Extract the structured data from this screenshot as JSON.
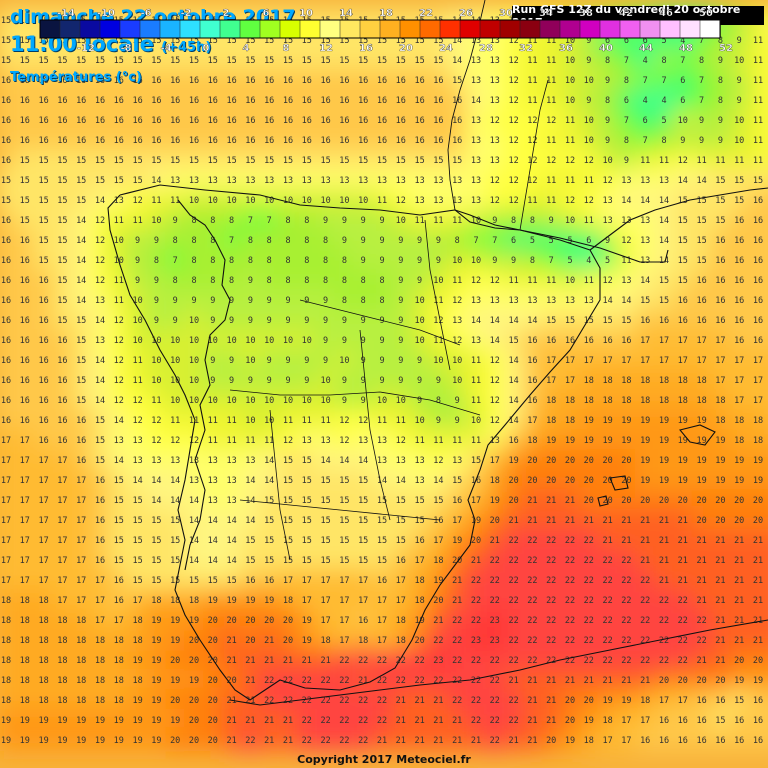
{
  "header": {
    "date_line": "dimanche 22 octobre 2017",
    "time_line": "11:00 locale",
    "offset": "(+45h)",
    "variable": "Températures (°c)"
  },
  "run_label": "Run GFS 12Z du vendredi 20 octobre 2017",
  "copyright": "Copyright 2017 Meteociel.fr",
  "legend": {
    "top_labels": [
      "-14",
      "-10",
      "-6",
      "-2",
      "2",
      "6",
      "10",
      "14",
      "18",
      "22",
      "26",
      "30",
      "34",
      "38",
      "42",
      "46",
      "50"
    ],
    "bottom_labels": [
      "-12",
      "-8",
      "-4",
      "0",
      "4",
      "8",
      "12",
      "16",
      "20",
      "24",
      "28",
      "32",
      "36",
      "40",
      "44",
      "48",
      "52"
    ],
    "colors": [
      "#0a1440",
      "#12266e",
      "#0a0aa0",
      "#0000e0",
      "#1a3cff",
      "#1a7cff",
      "#1ab4ff",
      "#2ee0ff",
      "#40ffd0",
      "#40ff90",
      "#60ff40",
      "#a0ff20",
      "#d8ff00",
      "#ffff30",
      "#ffff80",
      "#ffe860",
      "#ffd040",
      "#ffb020",
      "#ff9000",
      "#ff6a00",
      "#ff3000",
      "#e00000",
      "#c00000",
      "#a00000",
      "#8a0010",
      "#90005a",
      "#b00090",
      "#d000c0",
      "#e030e0",
      "#f060f0",
      "#f090f0",
      "#ffc0ff",
      "#ffe0ff",
      "#ffffff"
    ]
  },
  "temperature_grid": {
    "note_units": "°c",
    "rows": [
      "15 15 15 15 15 15 15 15 15 15 15 15 15 15 15 15 15 15 15 15 15 15 15 15 14 14 13 13 12 11 10 9 8 7 7 6 5 6 7 9 11 13",
      "15 15 15 15 15 15 15 15 15 15 15 15 15 15 15 15 15 15 15 15 15 15 15 15 14 13 13 12 11 11 10 9 6 6 6 5 4 7 8 9 11 12",
      "15 15 15 15 15 15 15 15 15 15 15 15 15 15 15 15 15 15 15 15 15 15 15 15 14 13 13 12 11 11 10 9 8 7 4 8 7 8 9 10 11 12",
      "16 16 16 16 16 16 16 16 16 16 16 16 16 16 16 16 16 16 16 16 16 16 16 16 15 13 13 12 11 11 10 10 9 8 7 7 6 7 8 9 11 12",
      "16 16 16 16 16 16 16 16 16 16 16 16 16 16 16 16 16 16 16 16 16 16 16 16 16 14 13 12 11 11 10 9 8 6 4 4 6 7 8 9 11 12",
      "16 16 16 16 16 16 16 16 16 16 16 16 16 16 16 16 16 16 16 16 16 16 16 16 16 13 12 12 12 12 11 10 9 7 6 5 10 9 9 10 11 12",
      "16 16 16 16 16 16 16 16 16 16 16 16 16 16 16 16 16 16 16 16 16 16 16 16 16 13 13 12 12 11 11 10 9 8 7 8 9 9 9 10 11 12",
      "16 15 15 15 15 15 15 15 15 15 15 15 15 15 15 15 15 15 15 15 15 15 15 15 15 13 13 12 12 12 12 12 10 9 11 11 12 11 11 11 11 12",
      "15 15 15 15 15 15 15 15 14 13 13 13 13 13 13 13 13 13 13 13 13 13 13 13 13 13 12 12 12 11 11 11 12 13 13 13 14 14 15 15 15 15",
      "15 15 15 15 15 14 13 12 11 11 10 10 10 10 10 10 10 10 10 10 11 12 13 13 13 13 12 12 11 11 12 12 13 14 14 14 15 15 15 15 16 16",
      "16 15 15 15 14 12 11 11 10 9 8 8 8 7 7 8 8 9 9 9 9 10 11 11 11 10 9 8 8 9 10 11 13 13 13 14 15 15 15 16 16 16",
      "16 16 15 15 14 12 10 9 9 8 8 8 7 8 8 8 8 8 9 9 9 9 9 9 8 7 7 6 5 5 5 6 9 12 13 14 15 15 16 16 16 16",
      "16 16 15 15 14 12 10 9 8 7 8 8 8 8 8 8 8 8 8 9 9 9 9 9 10 10 9 9 8 7 5 4 5 11 13 14 15 15 16 16 16 16",
      "16 16 16 15 14 12 11 9 9 8 8 8 8 9 8 8 8 8 8 8 8 9 9 10 11 12 12 11 11 11 10 11 12 13 14 15 15 16 16 16 16 16",
      "16 16 16 15 14 13 11 10 9 9 9 9 9 9 9 9 9 9 8 8 8 9 10 11 12 13 13 13 13 13 13 13 14 14 15 15 16 16 16 16 16 16",
      "16 16 16 15 15 14 12 10 9 9 10 9 9 9 9 9 9 9 9 9 9 9 10 12 13 14 14 14 14 15 15 15 15 15 16 16 16 16 16 16 16 16",
      "16 16 16 16 15 13 12 10 10 10 10 10 10 10 10 10 10 9 9 9 9 9 10 11 12 13 14 15 16 16 16 16 16 16 17 17 17 17 17 16 16 16",
      "16 16 16 16 15 14 12 11 10 10 10 9 9 10 9 9 9 9 10 9 9 9 9 10 10 11 12 14 16 17 17 17 17 17 17 17 17 17 17 17 17 17",
      "16 16 16 16 15 14 12 11 10 10 10 9 9 9 9 9 9 10 9 9 9 9 9 9 10 11 12 14 16 17 17 18 18 18 18 18 18 18 17 17 17 17",
      "16 16 16 16 15 14 12 12 11 10 10 10 10 10 10 10 10 10 9 9 10 10 9 8 9 11 12 14 16 18 18 18 18 18 18 18 18 18 18 17 17 17",
      "16 16 16 16 16 15 14 12 12 11 11 11 11 10 10 11 11 11 12 12 11 11 10 9 9 10 12 14 17 18 18 19 19 19 19 19 19 19 18 18 18 17",
      "17 17 16 16 16 15 13 13 12 12 12 11 11 11 11 12 13 13 12 13 13 12 11 11 11 11 13 16 18 19 19 19 19 19 19 19 19 19 19 18 18 18",
      "17 17 17 17 16 15 14 13 13 13 13 13 13 13 14 15 15 14 14 14 13 13 13 12 13 15 17 19 20 20 20 20 20 20 19 19 19 19 19 19 19 19",
      "17 17 17 17 17 16 15 14 14 14 13 13 13 14 14 15 15 15 15 15 14 14 13 14 15 16 18 20 20 20 20 20 20 20 19 19 19 19 19 19 19 19",
      "17 17 17 17 17 16 15 15 14 14 14 13 13 14 15 15 15 15 15 15 15 15 15 15 16 17 19 20 21 21 21 20 20 20 20 20 20 20 20 20 20 20",
      "17 17 17 17 17 16 15 15 15 15 14 14 14 14 15 15 15 15 15 15 15 15 15 16 17 19 20 21 21 21 21 21 21 21 21 21 21 20 20 20 20 20",
      "17 17 17 17 17 16 15 15 15 15 14 14 14 15 15 15 15 15 15 15 15 15 16 17 19 20 21 22 22 22 22 22 21 21 21 21 21 21 21 21 21 21",
      "17 17 17 17 17 16 15 15 15 15 14 14 14 15 15 15 15 15 15 15 15 16 17 18 20 21 22 22 22 22 22 22 22 22 21 21 21 21 21 21 21 21",
      "17 17 17 17 17 17 16 15 15 15 15 15 15 16 16 17 17 17 17 17 16 17 18 19 21 22 22 22 22 22 22 22 22 22 22 21 21 21 21 21 21 21",
      "18 18 18 17 17 17 16 17 18 18 18 19 19 19 19 18 17 17 17 17 17 17 18 20 21 22 22 22 22 22 22 22 22 22 22 22 22 21 21 21 21 21",
      "18 18 18 18 18 17 17 18 19 19 19 20 20 20 20 20 19 17 17 16 17 18 19 21 22 22 23 22 22 22 22 22 22 22 22 22 22 22 21 21 21 21",
      "18 18 18 18 18 18 18 18 19 19 20 20 21 20 21 20 19 18 17 18 17 18 20 22 22 23 23 22 22 22 22 22 22 22 22 22 22 22 21 21 21 21",
      "18 18 18 18 18 18 18 19 19 20 20 20 21 21 21 21 21 21 22 22 22 22 22 23 22 22 22 22 22 22 22 22 22 22 22 22 22 21 21 20 20 20",
      "18 18 18 18 18 18 18 18 19 19 19 20 20 21 22 22 22 22 22 21 22 22 22 22 22 22 22 21 21 21 21 21 21 21 21 20 20 20 20 19 19 19",
      "18 18 18 18 18 18 18 19 19 20 20 20 21 21 22 22 22 22 22 22 22 21 21 21 22 22 22 22 21 21 20 20 19 19 18 17 17 16 16 15 16 16",
      "19 19 19 19 19 19 19 19 19 19 20 20 21 21 21 21 22 22 22 22 22 21 21 21 21 22 22 22 21 21 20 19 18 17 17 16 16 16 15 16 16 16",
      "19 19 19 19 19 19 19 19 19 20 20 20 21 22 21 21 22 22 22 22 21 21 21 21 21 21 22 21 21 20 19 18 17 17 16 16 16 16 16 16 16 16"
    ]
  }
}
